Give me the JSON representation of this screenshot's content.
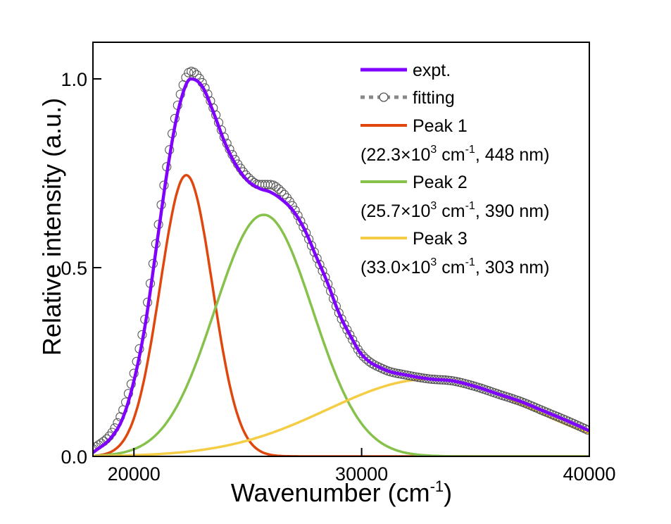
{
  "chart_data": {
    "type": "line",
    "xlabel": "Wavenumber (cm",
    "xlabel_sup": "-1",
    "xlabel_close": ")",
    "ylabel": "Relative intensity (a.u.)",
    "xlim": [
      18200,
      40000
    ],
    "ylim": [
      0,
      1.1
    ],
    "x_ticks": [
      20000,
      30000,
      40000
    ],
    "x_tick_labels": [
      "20000",
      "30000",
      "40000"
    ],
    "y_ticks": [
      0,
      0.5,
      1.0
    ],
    "y_tick_labels": [
      "0.0",
      "0.5",
      "1.0"
    ],
    "grid": false,
    "legend_position": "top-right",
    "series": [
      {
        "name": "expt.",
        "color": "#8000ff",
        "x": [
          18200,
          19000,
          19500,
          20000,
          20500,
          21000,
          21500,
          22000,
          22500,
          23000,
          23500,
          24000,
          24500,
          25000,
          25500,
          26000,
          26500,
          27000,
          27500,
          28000,
          28500,
          29000,
          29500,
          30000,
          31000,
          32000,
          33000,
          34000,
          35000,
          36000,
          37000,
          38000,
          39000,
          40000
        ],
        "y": [
          0.01,
          0.05,
          0.1,
          0.2,
          0.35,
          0.56,
          0.77,
          0.93,
          1.0,
          0.98,
          0.91,
          0.83,
          0.77,
          0.73,
          0.71,
          0.7,
          0.68,
          0.65,
          0.6,
          0.53,
          0.46,
          0.38,
          0.32,
          0.27,
          0.23,
          0.215,
          0.205,
          0.2,
          0.185,
          0.165,
          0.145,
          0.12,
          0.095,
          0.068
        ]
      },
      {
        "name": "fitting",
        "color": "#888888",
        "x": [
          18200,
          19000,
          19500,
          20000,
          20500,
          21000,
          21500,
          22000,
          22500,
          23000,
          23500,
          24000,
          24500,
          25000,
          25500,
          26000,
          26500,
          27000,
          27500,
          28000,
          28500,
          29000,
          29500,
          30000,
          31000,
          32000,
          33000,
          34000,
          35000,
          36000,
          37000,
          38000,
          39000,
          40000
        ],
        "y": [
          0.02,
          0.06,
          0.12,
          0.22,
          0.37,
          0.58,
          0.79,
          0.95,
          1.02,
          0.99,
          0.92,
          0.84,
          0.78,
          0.74,
          0.72,
          0.72,
          0.7,
          0.66,
          0.6,
          0.53,
          0.46,
          0.38,
          0.32,
          0.27,
          0.23,
          0.215,
          0.205,
          0.2,
          0.185,
          0.165,
          0.145,
          0.12,
          0.095,
          0.068
        ]
      },
      {
        "name": "Peak 1",
        "label": "(22.3×10³ cm⁻¹, 448 nm)",
        "color": "#e0470e",
        "center": 22300,
        "sigma": 1150,
        "amplitude": 0.745
      },
      {
        "name": "Peak 2",
        "label": "(25.7×10³ cm⁻¹, 390 nm)",
        "color": "#86c24b",
        "center": 25700,
        "sigma": 2150,
        "amplitude": 0.64
      },
      {
        "name": "Peak 3",
        "label": "(33.0×10³ cm⁻¹, 303 nm)",
        "color": "#f5cd45",
        "center": 33000,
        "sigma": 4500,
        "amplitude": 0.205
      }
    ]
  },
  "legend": {
    "expt": "expt.",
    "fitting": "fitting",
    "peak1": "Peak 1",
    "peak1_pre": "(22.3×10",
    "peak1_sup3": "3",
    "peak1_mid": " cm",
    "peak1_sup1": "-1",
    "peak1_post": ", 448 nm)",
    "peak2": "Peak 2",
    "peak2_pre": "(25.7×10",
    "peak2_sup3": "3",
    "peak2_mid": " cm",
    "peak2_sup1": "-1",
    "peak2_post": ", 390 nm)",
    "peak3": "Peak 3",
    "peak3_pre": "(33.0×10",
    "peak3_sup3": "3",
    "peak3_mid": " cm",
    "peak3_sup1": "-1",
    "peak3_post": ", 303 nm)"
  }
}
